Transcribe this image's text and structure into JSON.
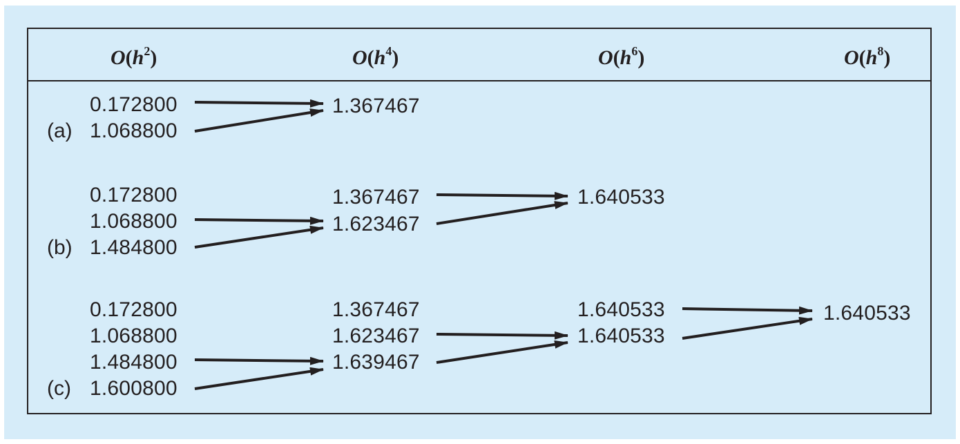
{
  "header": {
    "col1": {
      "base": "O",
      "paren_open": "(",
      "var": "h",
      "exp": "2",
      "paren_close": ")"
    },
    "col2": {
      "base": "O",
      "paren_open": "(",
      "var": "h",
      "exp": "4",
      "paren_close": ")"
    },
    "col3": {
      "base": "O",
      "paren_open": "(",
      "var": "h",
      "exp": "6",
      "paren_close": ")"
    },
    "col4": {
      "base": "O",
      "paren_open": "(",
      "var": "h",
      "exp": "8",
      "paren_close": ")"
    }
  },
  "cases": {
    "a": {
      "label": "(a)",
      "h2": [
        "0.172800",
        "1.068800"
      ],
      "h4": [
        "1.367467"
      ]
    },
    "b": {
      "label": "(b)",
      "h2": [
        "0.172800",
        "1.068800",
        "1.484800"
      ],
      "h4": [
        "1.367467",
        "1.623467"
      ],
      "h6": [
        "1.640533"
      ]
    },
    "c": {
      "label": "(c)",
      "h2": [
        "0.172800",
        "1.068800",
        "1.484800",
        "1.600800"
      ],
      "h4": [
        "1.367467",
        "1.623467",
        "1.639467"
      ],
      "h6": [
        "1.640533",
        "1.640533"
      ],
      "h8": [
        "1.640533"
      ]
    }
  },
  "colors": {
    "background": "#d6ecf9",
    "ink": "#231f20"
  }
}
